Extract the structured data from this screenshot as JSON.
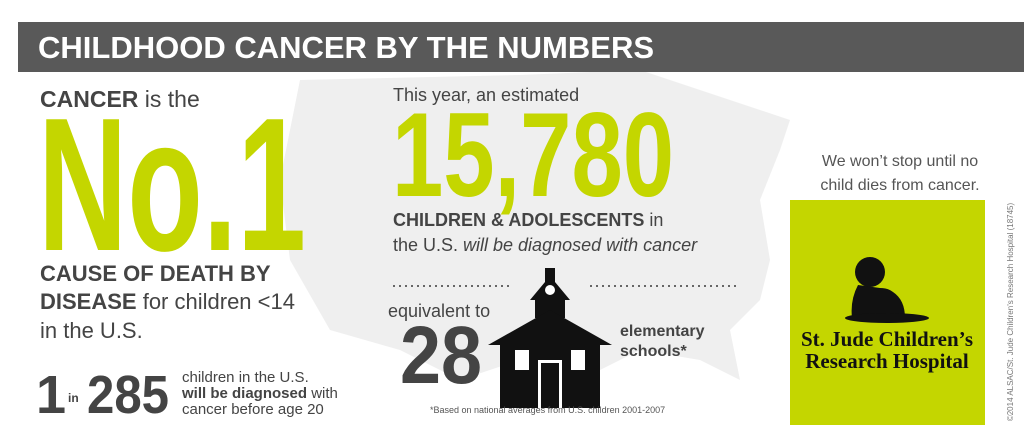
{
  "header": {
    "title": "CHILDHOOD CANCER BY THE NUMBERS"
  },
  "left": {
    "line1_bold": "CANCER",
    "line1_rest": " is the",
    "big": "No.1",
    "line2": "CAUSE OF DEATH BY",
    "line3_bold": "DISEASE",
    "line3_rest": " for children <14",
    "line4": "in the U.S.",
    "ratio_one": "1",
    "ratio_in": "in",
    "ratio_n": "285",
    "ratio_text1": "children in the U.S.",
    "ratio_text2_bold": "will be diagnosed",
    "ratio_text2_rest": " with",
    "ratio_text3": "cancer before age 20"
  },
  "middle": {
    "intro": "This year, an estimated",
    "big": "15,780",
    "line1_bold": "CHILDREN & ADOLESCENTS",
    "line1_rest": " in",
    "line2_plain": "the U.S. ",
    "line2_italic": "will be diagnosed with cancer",
    "equiv": "equivalent to",
    "schools_n": "28",
    "schools_label1": "elementary",
    "schools_label2": "schools*",
    "footnote": "*Based on national averages from U.S. children 2001-2007"
  },
  "right": {
    "pledge1": "We won’t stop until no",
    "pledge2": "child dies from cancer.",
    "logo1": "St. Jude Children’s",
    "logo2": "Research Hospital",
    "copyright": "©2014 ALSAC/St. Jude Children’s Research Hospital  (18745)"
  }
}
